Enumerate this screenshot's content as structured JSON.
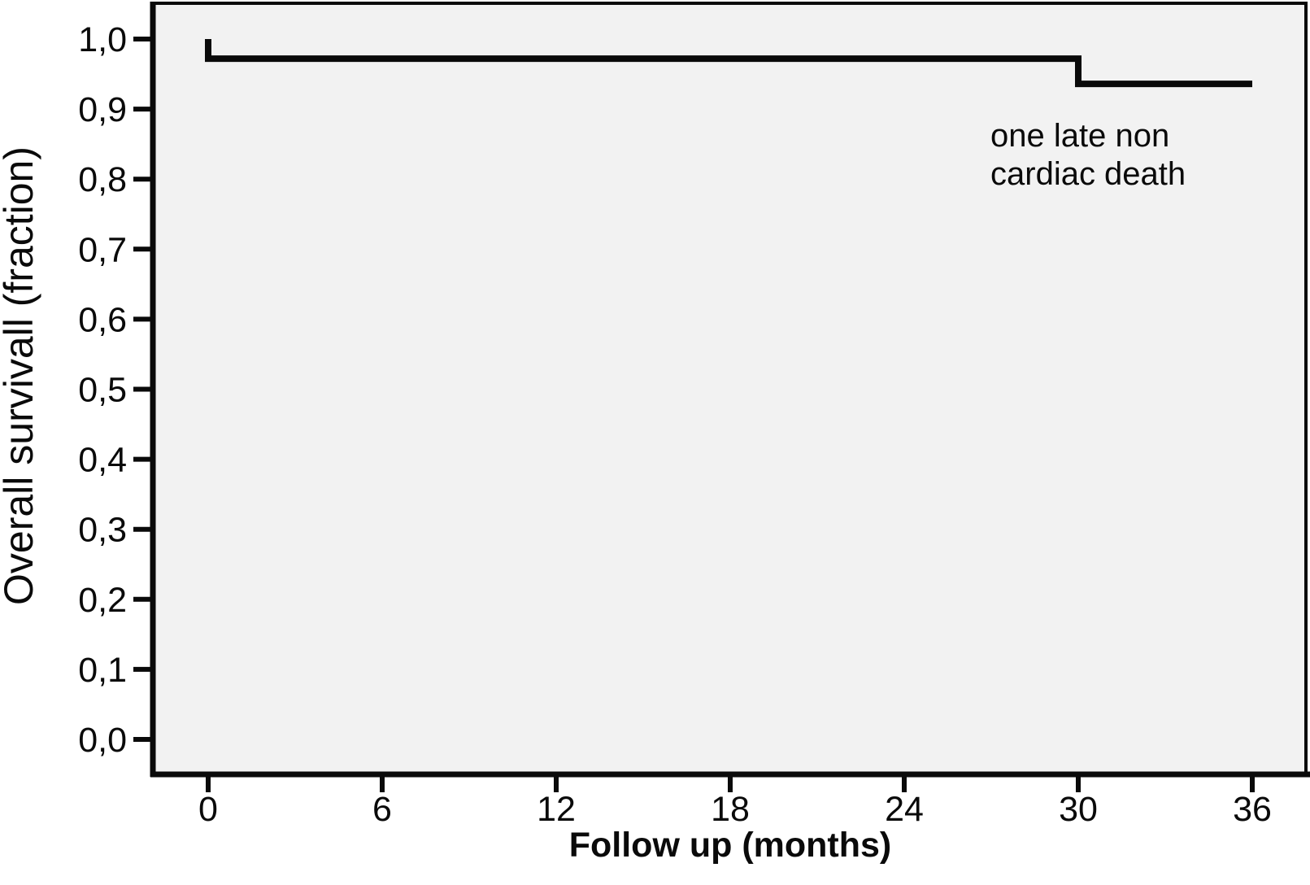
{
  "figure": {
    "background_color": "#ffffff",
    "plot_background_color": "#f2f2f2",
    "line_color": "#0a0a0a"
  },
  "y_axis": {
    "title": "Overall survivall (fraction)"
  },
  "x_axis": {
    "title": "Follow up (months)"
  },
  "annotation": {
    "lines": [
      "one late non",
      "cardiac death"
    ]
  },
  "chart_data": {
    "type": "line",
    "subtype": "kaplan-meier-step",
    "title": "",
    "xlabel": "Follow up (months)",
    "ylabel": "Overall survivall (fraction)",
    "xlim": [
      0,
      36
    ],
    "ylim": [
      0.0,
      1.0
    ],
    "grid": false,
    "legend": false,
    "x_ticks": [
      {
        "value": 0,
        "label": "0"
      },
      {
        "value": 6,
        "label": "6"
      },
      {
        "value": 12,
        "label": "12"
      },
      {
        "value": 18,
        "label": "18"
      },
      {
        "value": 24,
        "label": "24"
      },
      {
        "value": 30,
        "label": "30"
      },
      {
        "value": 36,
        "label": "36"
      }
    ],
    "y_ticks": [
      {
        "value": 0.0,
        "label": "0,0"
      },
      {
        "value": 0.1,
        "label": "0,1"
      },
      {
        "value": 0.2,
        "label": "0,2"
      },
      {
        "value": 0.3,
        "label": "0,3"
      },
      {
        "value": 0.4,
        "label": "0,4"
      },
      {
        "value": 0.5,
        "label": "0,5"
      },
      {
        "value": 0.6,
        "label": "0,6"
      },
      {
        "value": 0.7,
        "label": "0,7"
      },
      {
        "value": 0.8,
        "label": "0,8"
      },
      {
        "value": 0.9,
        "label": "0,9"
      },
      {
        "value": 1.0,
        "label": "1,0"
      }
    ],
    "series": [
      {
        "name": "Overall survival",
        "color": "#0a0a0a",
        "points": [
          [
            0,
            1.0
          ],
          [
            0,
            0.972
          ],
          [
            30,
            0.972
          ],
          [
            30,
            0.936
          ],
          [
            36,
            0.936
          ]
        ]
      }
    ],
    "annotations": [
      {
        "text": "one late non cardiac death",
        "x_months": 27,
        "y_fraction": 0.85
      }
    ]
  }
}
